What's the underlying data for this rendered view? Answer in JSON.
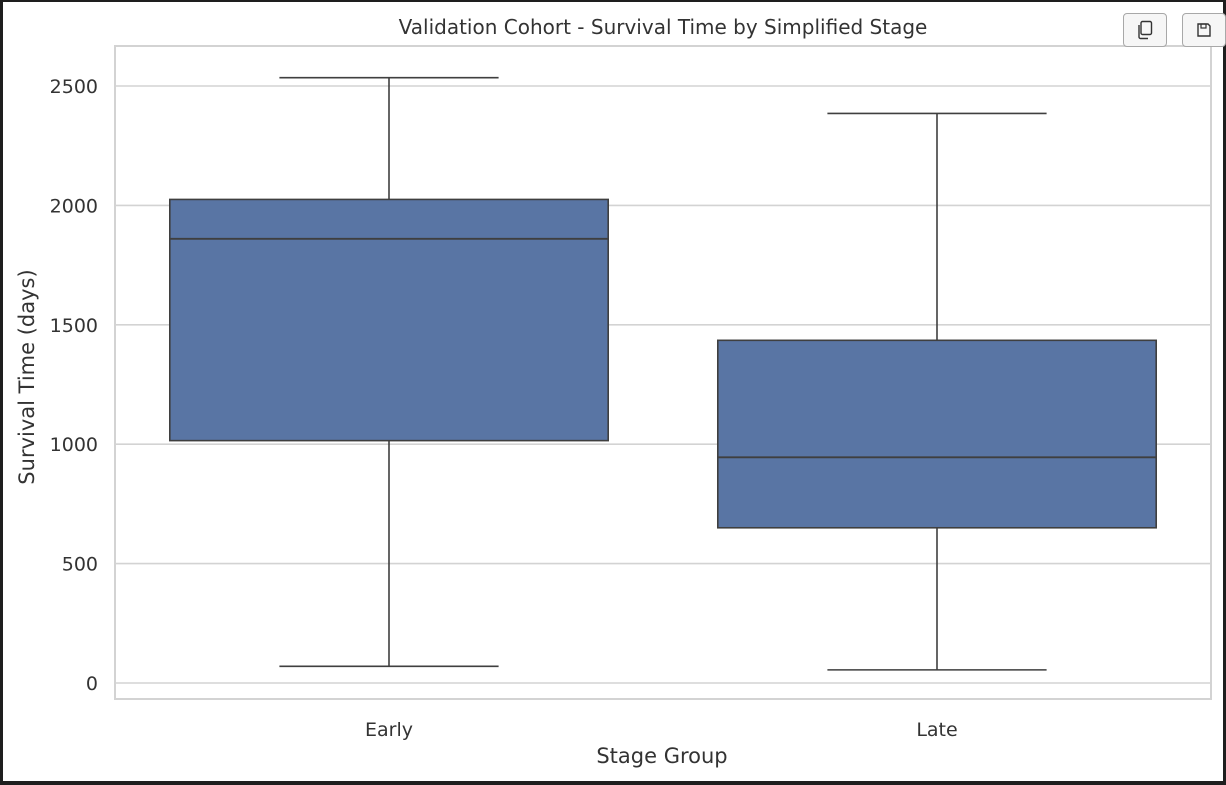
{
  "toolbar": {
    "copy_icon": "copy-icon",
    "save_icon": "save-icon"
  },
  "chart_data": {
    "type": "box",
    "title": "Validation Cohort - Survival Time by Simplified Stage",
    "xlabel": "Stage Group",
    "ylabel": "Survival Time (days)",
    "ylim": [
      -70,
      2670
    ],
    "yticks": [
      0,
      500,
      1000,
      1500,
      2000,
      2500
    ],
    "grid": true,
    "box_color": "#5975a4",
    "line_color": "#3f3f3f",
    "categories": [
      "Early",
      "Late"
    ],
    "boxes": [
      {
        "category": "Early",
        "whisker_low": 70,
        "q1": 1015,
        "median": 1860,
        "q3": 2025,
        "whisker_high": 2535
      },
      {
        "category": "Late",
        "whisker_low": 55,
        "q1": 650,
        "median": 945,
        "q3": 1435,
        "whisker_high": 2385
      }
    ]
  }
}
